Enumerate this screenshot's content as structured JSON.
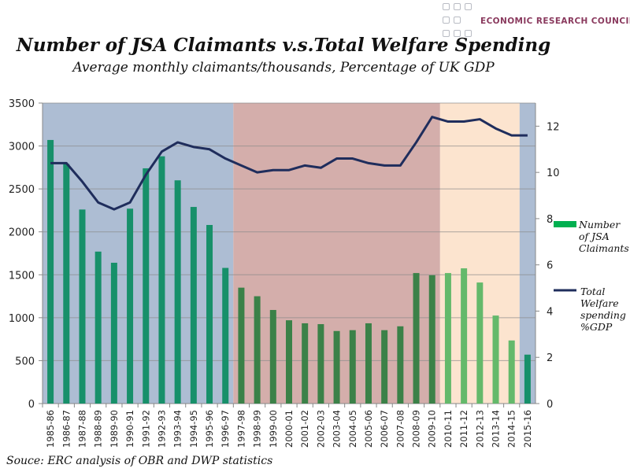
{
  "logo": {
    "text": "ECONOMIC RESEARCH COUNCIL"
  },
  "chart_data": {
    "type": "bar+line",
    "title": "Number of JSA Claimants v.s.Total Welfare Spending",
    "subtitle": "Average monthly claimants/thousands, Percentage of UK GDP",
    "source": "Souce: ERC analysis of OBR and DWP statistics",
    "categories": [
      "1985-86",
      "1986-87",
      "1987-88",
      "1988-89",
      "1989-90",
      "1990-91",
      "1991-92",
      "1992-93",
      "1993-94",
      "1994-95",
      "1995-96",
      "1996-97",
      "1997-98",
      "1998-99",
      "1999-00",
      "2000-01",
      "2001-02",
      "2002-03",
      "2003-04",
      "2004-05",
      "2005-06",
      "2006-07",
      "2007-08",
      "2008-09",
      "2009-10",
      "2010-11",
      "2011-12",
      "2012-13",
      "2013-14",
      "2014-15",
      "2015-16"
    ],
    "series": [
      {
        "name": "Number of JSA Claimants",
        "type": "bar",
        "axis": "left",
        "values": [
          3070,
          2790,
          2260,
          1770,
          1640,
          2270,
          2740,
          2880,
          2600,
          2290,
          2080,
          1580,
          1350,
          1250,
          1090,
          970,
          935,
          925,
          845,
          855,
          935,
          855,
          900,
          1520,
          1495,
          1520,
          1575,
          1410,
          1025,
          735,
          570
        ]
      },
      {
        "name": "Total Welfare spending %GDP",
        "type": "line",
        "axis": "right",
        "values": [
          10.4,
          10.4,
          9.6,
          8.7,
          8.4,
          8.7,
          9.9,
          10.9,
          11.3,
          11.1,
          11.0,
          10.6,
          10.3,
          10.0,
          10.1,
          10.1,
          10.3,
          10.2,
          10.6,
          10.6,
          10.4,
          10.3,
          10.3,
          11.3,
          12.4,
          12.2,
          12.2,
          12.3,
          11.9,
          11.6,
          11.6
        ]
      }
    ],
    "legend": [
      {
        "label": "Number of JSA Claimants",
        "line1": "Number",
        "line2": "of JSA",
        "line3": "Claimants",
        "line4": ""
      },
      {
        "label": "Total Welfare spending %GDP",
        "line1": "Total",
        "line2": "Welfare",
        "line3": "spending",
        "line4": "%GDP"
      }
    ],
    "legend_position": "right",
    "y_left": {
      "range": [
        0,
        3500
      ],
      "ticks": [
        "0",
        "500",
        "1000",
        "1500",
        "2000",
        "2500",
        "3000",
        "3500"
      ]
    },
    "y_right": {
      "range": [
        0,
        13
      ],
      "ticks": [
        "0",
        "2",
        "4",
        "6",
        "8",
        "10",
        "12"
      ]
    },
    "grid": true,
    "background_periods": [
      {
        "from": "1985-86",
        "to": "1996-97",
        "color": "#adbdd3",
        "bar_color": "#17906a"
      },
      {
        "from": "1997-98",
        "to": "2009-10",
        "color": "#d4aeab",
        "bar_color": "#3b8148"
      },
      {
        "from": "2010-11",
        "to": "2014-15",
        "color": "#fce4cf",
        "bar_color": "#64b96b"
      },
      {
        "from": "2015-16",
        "to": "2015-16",
        "color": "#adbdd3",
        "bar_color": "#17906a"
      }
    ],
    "colors": {
      "line": "#1f2d5c",
      "legend_bar": "#00b050",
      "grid": "#8a8a8a"
    }
  }
}
